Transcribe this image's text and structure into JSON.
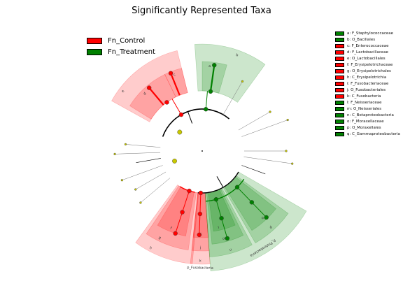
{
  "title": "Significantly Represented Taxa",
  "colors": {
    "control": "#ff0000",
    "treatment": "#008000",
    "neutral": "#c8c800"
  },
  "groups": [
    {
      "name": "Fn_Control",
      "color": "#ff0000"
    },
    {
      "name": "Fn_Treatment",
      "color": "#008000"
    }
  ],
  "taxa_legend": [
    {
      "text": "a: F_Staphylococcaceae",
      "color": "#008000"
    },
    {
      "text": "b: O_Bacillales",
      "color": "#008000"
    },
    {
      "text": "c: F_Enterococcaceae",
      "color": "#ff0000"
    },
    {
      "text": "d: F_Lactobacillaceae",
      "color": "#ff0000"
    },
    {
      "text": "e: O_Lactobacillales",
      "color": "#ff0000"
    },
    {
      "text": "f: F_Erysipelotrichaceae",
      "color": "#ff0000"
    },
    {
      "text": "g: O_Erysipelotrichales",
      "color": "#ff0000"
    },
    {
      "text": "h: C_Erysipelotrichia",
      "color": "#ff0000"
    },
    {
      "text": "i: F_Fusobacteriaceae",
      "color": "#ff0000"
    },
    {
      "text": "j: O_Fusobacteriales",
      "color": "#ff0000"
    },
    {
      "text": "k: C_Fusobacteria",
      "color": "#ff0000"
    },
    {
      "text": "l: F_Neisseriaceae",
      "color": "#008000"
    },
    {
      "text": "m: O_Neisseriales",
      "color": "#008000"
    },
    {
      "text": "n: C_Betaproteobacteria",
      "color": "#008000"
    },
    {
      "text": "o: F_Moraxellaceae",
      "color": "#008000"
    },
    {
      "text": "p: O_Moraxellales",
      "color": "#008000"
    },
    {
      "text": "q: C_Gammaproteobacteria",
      "color": "#008000"
    }
  ],
  "chart_data": {
    "type": "cladogram",
    "title": "Significantly Represented Taxa",
    "legend": [
      "Fn_Control",
      "Fn_Treatment"
    ],
    "clades": [
      {
        "letter": "a",
        "taxon": "F_Staphylococcaceae",
        "group": "Fn_Treatment"
      },
      {
        "letter": "b",
        "taxon": "O_Bacillales",
        "group": "Fn_Treatment"
      },
      {
        "letter": "c",
        "taxon": "F_Enterococcaceae",
        "group": "Fn_Control"
      },
      {
        "letter": "d",
        "taxon": "F_Lactobacillaceae",
        "group": "Fn_Control"
      },
      {
        "letter": "e",
        "taxon": "O_Lactobacillales",
        "group": "Fn_Control"
      },
      {
        "letter": "f",
        "taxon": "F_Erysipelotrichaceae",
        "group": "Fn_Control"
      },
      {
        "letter": "g",
        "taxon": "O_Erysipelotrichales",
        "group": "Fn_Control"
      },
      {
        "letter": "h",
        "taxon": "C_Erysipelotrichia",
        "group": "Fn_Control"
      },
      {
        "letter": "i",
        "taxon": "F_Fusobacteriaceae",
        "group": "Fn_Control"
      },
      {
        "letter": "j",
        "taxon": "O_Fusobacteriales",
        "group": "Fn_Control"
      },
      {
        "letter": "k",
        "taxon": "C_Fusobacteria",
        "group": "Fn_Control"
      },
      {
        "letter": "l",
        "taxon": "F_Neisseriaceae",
        "group": "Fn_Treatment"
      },
      {
        "letter": "m",
        "taxon": "O_Neisseriales",
        "group": "Fn_Treatment"
      },
      {
        "letter": "n",
        "taxon": "C_Betaproteobacteria",
        "group": "Fn_Treatment"
      },
      {
        "letter": "o",
        "taxon": "F_Moraxellaceae",
        "group": "Fn_Treatment"
      },
      {
        "letter": "p",
        "taxon": "O_Moraxellales",
        "group": "Fn_Treatment"
      },
      {
        "letter": "q",
        "taxon": "C_Gammaproteobacteria",
        "group": "Fn_Treatment"
      }
    ],
    "phylum_labels": [
      {
        "text": "p_Fusobacteria",
        "group": "Fn_Control"
      },
      {
        "text": "p_Proteobacteria",
        "group": "Fn_Treatment"
      }
    ]
  }
}
